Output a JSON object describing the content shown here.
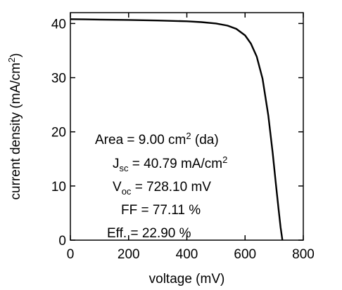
{
  "chart_data": {
    "type": "line",
    "title": "",
    "xlabel": "voltage (mV)",
    "ylabel": {
      "main": "current density (mA/cm",
      "sup": "2",
      "close": ")"
    },
    "xlim": [
      0,
      800
    ],
    "ylim": [
      0,
      42
    ],
    "xticks": [
      0,
      200,
      400,
      600,
      800
    ],
    "yticks": [
      0,
      10,
      20,
      30,
      40
    ],
    "grid": false,
    "legend": "none",
    "line_color": "#000000",
    "series": [
      {
        "x": [
          0,
          50,
          100,
          200,
          300,
          400,
          450,
          500,
          540,
          570,
          600,
          620,
          640,
          660,
          680,
          695,
          705,
          715,
          722,
          728.1
        ],
        "y": [
          40.79,
          40.76,
          40.72,
          40.65,
          40.55,
          40.4,
          40.25,
          40.0,
          39.6,
          39.0,
          37.8,
          36.3,
          33.9,
          29.8,
          23.0,
          16.0,
          10.8,
          5.8,
          2.4,
          0
        ]
      }
    ],
    "annotations": [
      {
        "id": "area",
        "parts": [
          "Area = 9.00 cm",
          "2",
          " (da)"
        ]
      },
      {
        "id": "jsc",
        "parts": [
          "J",
          "sc",
          " = 40.79 mA/cm",
          "2"
        ]
      },
      {
        "id": "voc",
        "parts": [
          "V",
          "oc",
          " = 728.10 mV"
        ]
      },
      {
        "id": "ff",
        "parts": [
          "FF = 77.11 %"
        ]
      },
      {
        "id": "eff",
        "parts": [
          "Eff. = 22.90 %"
        ]
      }
    ]
  }
}
